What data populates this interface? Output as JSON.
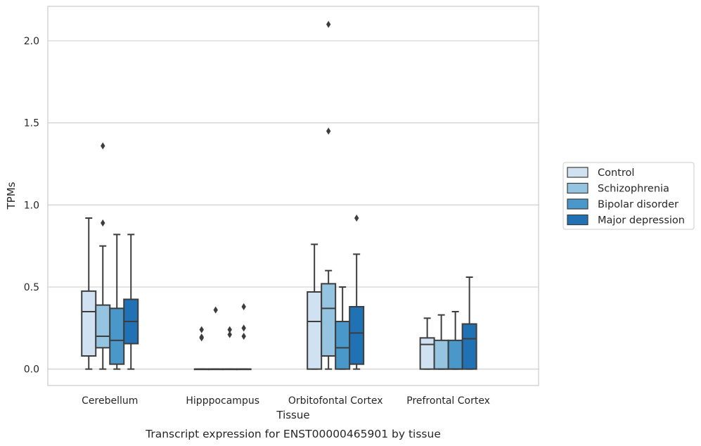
{
  "chart_data": {
    "type": "box",
    "title": "",
    "caption": "Transcript expression for ENST00000465901 by tissue",
    "xlabel": "Tissue",
    "ylabel": "TPMs",
    "ylim": [
      -0.1,
      2.21
    ],
    "yticks": [
      0.0,
      0.5,
      1.0,
      1.5,
      2.0
    ],
    "ytick_labels": [
      "0.0",
      "0.5",
      "1.0",
      "1.5",
      "2.0"
    ],
    "grid": "horizontal",
    "legend_position": "right",
    "categories": [
      "Cerebellum",
      "Hipppocampus",
      "Orbitofontal Cortex",
      "Prefrontal Cortex"
    ],
    "series": [
      {
        "name": "Control",
        "color": "#d0e1f2",
        "boxes": [
          {
            "whisker_low": 0.0,
            "q1": 0.08,
            "median": 0.35,
            "q3": 0.475,
            "whisker_high": 0.92,
            "outliers": []
          },
          {
            "whisker_low": 0.0,
            "q1": 0.0,
            "median": 0.0,
            "q3": 0.0,
            "whisker_high": 0.0,
            "outliers": [
              0.19,
              0.195,
              0.24
            ]
          },
          {
            "whisker_low": 0.0,
            "q1": 0.0,
            "median": 0.29,
            "q3": 0.47,
            "whisker_high": 0.76,
            "outliers": []
          },
          {
            "whisker_low": 0.0,
            "q1": 0.0,
            "median": 0.15,
            "q3": 0.19,
            "whisker_high": 0.31,
            "outliers": []
          }
        ]
      },
      {
        "name": "Schizophrenia",
        "color": "#94c4df",
        "boxes": [
          {
            "whisker_low": 0.0,
            "q1": 0.13,
            "median": 0.2,
            "q3": 0.39,
            "whisker_high": 0.75,
            "outliers": [
              0.89,
              1.36
            ]
          },
          {
            "whisker_low": 0.0,
            "q1": 0.0,
            "median": 0.0,
            "q3": 0.0,
            "whisker_high": 0.0,
            "outliers": [
              0.36
            ]
          },
          {
            "whisker_low": 0.0,
            "q1": 0.08,
            "median": 0.37,
            "q3": 0.52,
            "whisker_high": 0.6,
            "outliers": [
              1.45,
              2.1
            ]
          },
          {
            "whisker_low": 0.0,
            "q1": 0.0,
            "median": 0.0,
            "q3": 0.175,
            "whisker_high": 0.33,
            "outliers": []
          }
        ]
      },
      {
        "name": "Bipolar disorder",
        "color": "#4a98c9",
        "boxes": [
          {
            "whisker_low": 0.0,
            "q1": 0.03,
            "median": 0.175,
            "q3": 0.37,
            "whisker_high": 0.82,
            "outliers": []
          },
          {
            "whisker_low": 0.0,
            "q1": 0.0,
            "median": 0.0,
            "q3": 0.0,
            "whisker_high": 0.0,
            "outliers": [
              0.21,
              0.24
            ]
          },
          {
            "whisker_low": 0.0,
            "q1": 0.0,
            "median": 0.13,
            "q3": 0.29,
            "whisker_high": 0.5,
            "outliers": []
          },
          {
            "whisker_low": 0.0,
            "q1": 0.0,
            "median": 0.0,
            "q3": 0.175,
            "whisker_high": 0.35,
            "outliers": []
          }
        ]
      },
      {
        "name": "Major depression",
        "color": "#2171b5",
        "boxes": [
          {
            "whisker_low": 0.0,
            "q1": 0.155,
            "median": 0.29,
            "q3": 0.425,
            "whisker_high": 0.82,
            "outliers": []
          },
          {
            "whisker_low": 0.0,
            "q1": 0.0,
            "median": 0.0,
            "q3": 0.0,
            "whisker_high": 0.0,
            "outliers": [
              0.2,
              0.25,
              0.38
            ]
          },
          {
            "whisker_low": 0.0,
            "q1": 0.03,
            "median": 0.22,
            "q3": 0.38,
            "whisker_high": 0.7,
            "outliers": [
              0.92
            ]
          },
          {
            "whisker_low": 0.0,
            "q1": 0.0,
            "median": 0.185,
            "q3": 0.275,
            "whisker_high": 0.56,
            "outliers": []
          }
        ]
      }
    ]
  }
}
